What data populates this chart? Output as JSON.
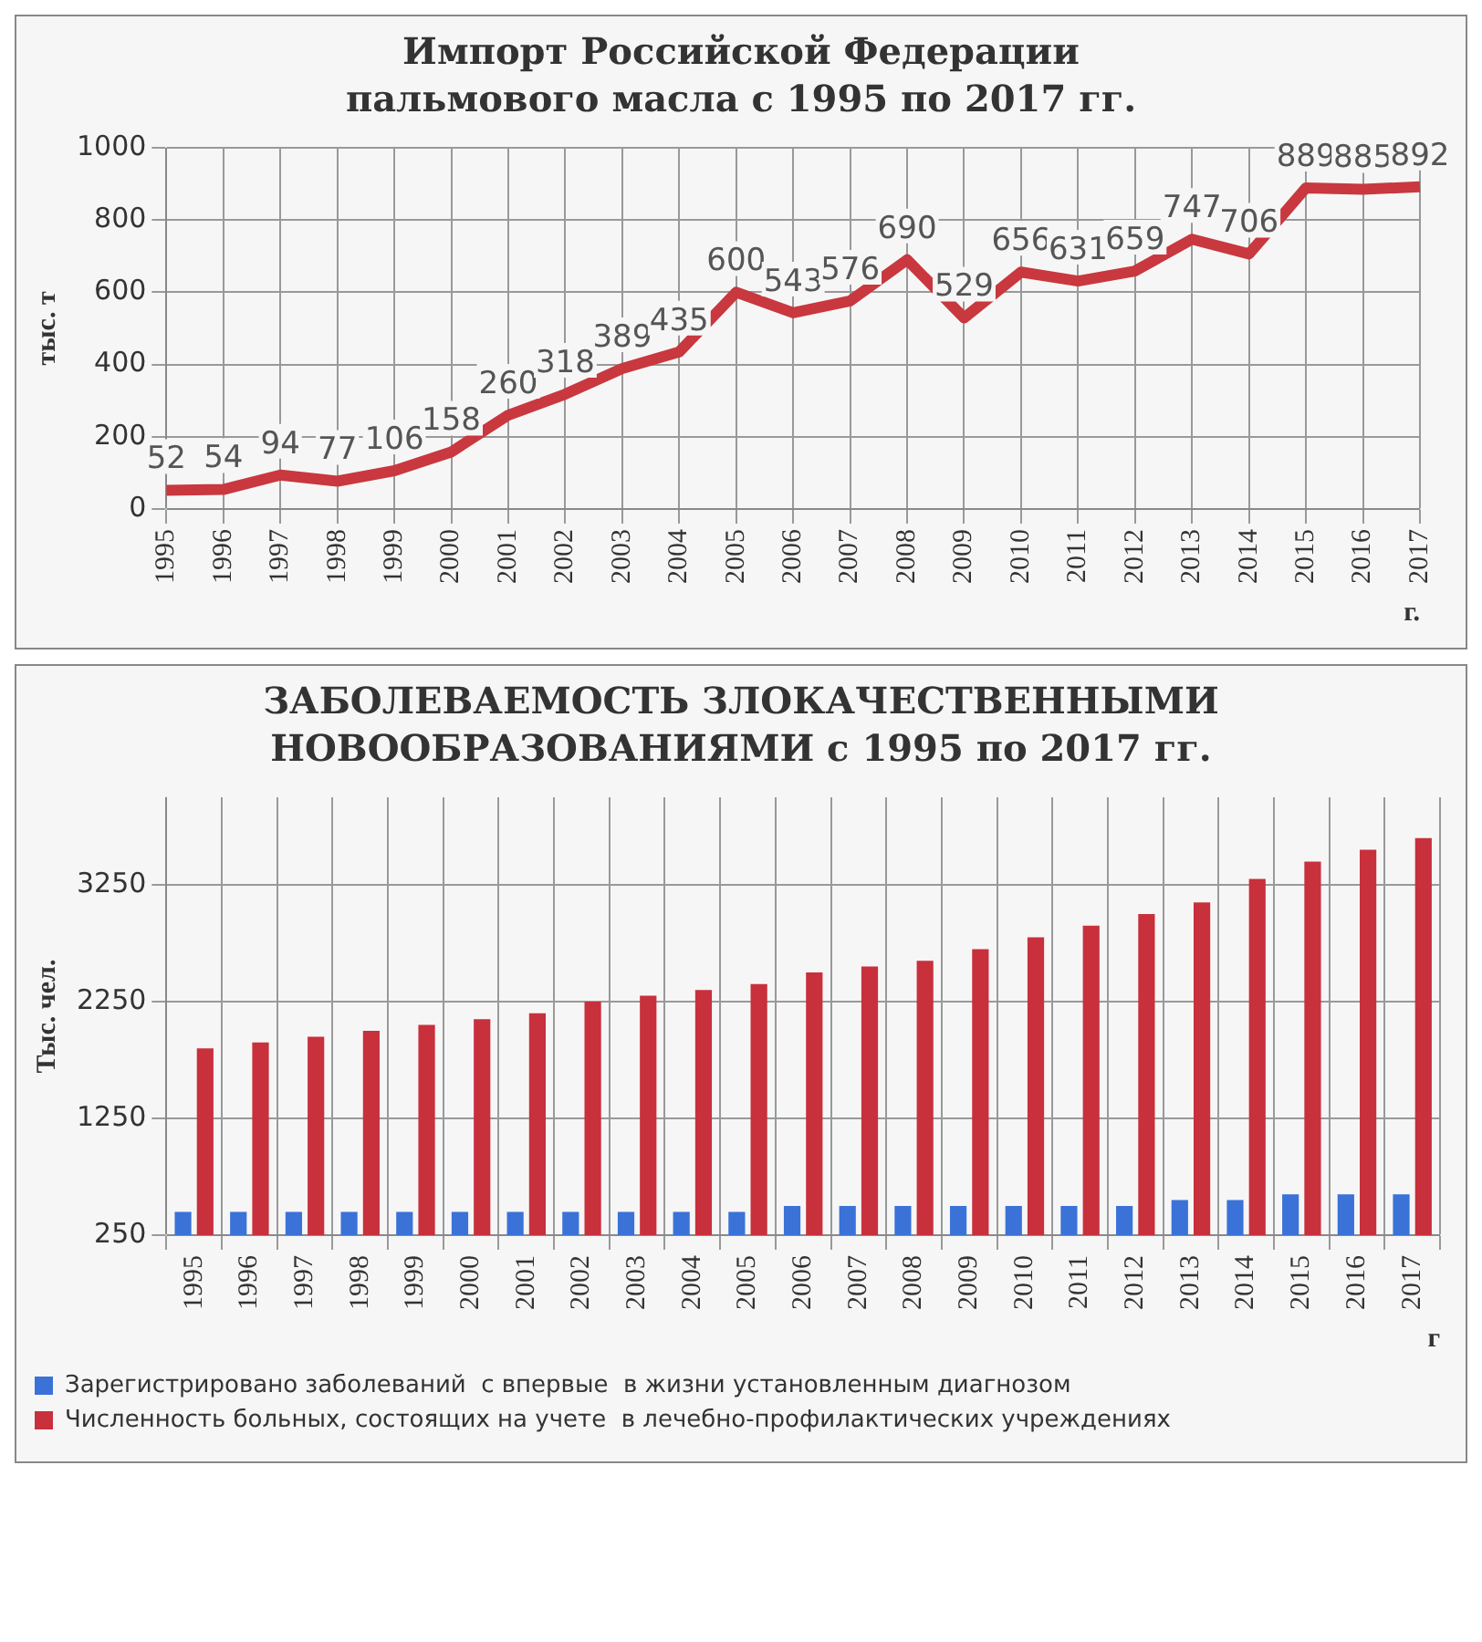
{
  "chart_data": [
    {
      "type": "line",
      "title": "Импорт Российской Федерации пальмового масла с 1995  по 2017 гг.",
      "ylabel": "тыс. т",
      "xlabel": "г.",
      "categories": [
        "1995",
        "1996",
        "1997",
        "1998",
        "1999",
        "2000",
        "2001",
        "2002",
        "2003",
        "2004",
        "2005",
        "2006",
        "2007",
        "2008",
        "2009",
        "2010",
        "2011",
        "2012",
        "2013",
        "2014",
        "2015",
        "2016",
        "2017"
      ],
      "series": [
        {
          "color": "#c8383e",
          "values": [
            52,
            54,
            94,
            77,
            106,
            158,
            260,
            318,
            389,
            435,
            600,
            543,
            576,
            690,
            529,
            656,
            631,
            659,
            747,
            706,
            889,
            885,
            892
          ]
        }
      ],
      "ylim": [
        0,
        1000
      ],
      "yticks": [
        0,
        200,
        400,
        600,
        800,
        1000
      ],
      "grid": true,
      "data_labels": true,
      "legend": false,
      "marker": "none"
    },
    {
      "type": "bar",
      "title": "ЗАБОЛЕВАЕМОСТЬ ЗЛОКАЧЕСТВЕННЫМИ НОВООБРАЗОВАНИЯМИ с 1995 по  2017 гг.",
      "ylabel": "Тыс. чел.",
      "xlabel": "г",
      "categories": [
        "1995",
        "1996",
        "1997",
        "1998",
        "1999",
        "2000",
        "2001",
        "2002",
        "2003",
        "2004",
        "2005",
        "2006",
        "2007",
        "2008",
        "2009",
        "2010",
        "2011",
        "2012",
        "2013",
        "2014",
        "2015",
        "2016",
        "2017"
      ],
      "series": [
        {
          "name": "Зарегистрировано заболеваний  с впервые  в жизни установленным диагнозом",
          "color": "#3a72d8",
          "values": [
            450,
            450,
            450,
            450,
            450,
            450,
            450,
            450,
            450,
            450,
            450,
            500,
            500,
            500,
            500,
            500,
            500,
            500,
            550,
            550,
            600,
            600,
            600
          ]
        },
        {
          "name": "Численность больных, состоящих на учете  в лечебно-профилактических учреждениях",
          "color": "#c8303c",
          "values": [
            1850,
            1900,
            1950,
            2000,
            2050,
            2100,
            2150,
            2250,
            2300,
            2350,
            2400,
            2500,
            2550,
            2600,
            2700,
            2800,
            2900,
            3000,
            3100,
            3300,
            3450,
            3550,
            3650
          ]
        }
      ],
      "ylim": [
        250,
        4000
      ],
      "yticks": [
        250,
        1250,
        2250,
        3250
      ],
      "grid": true,
      "legend": "bottom"
    }
  ]
}
